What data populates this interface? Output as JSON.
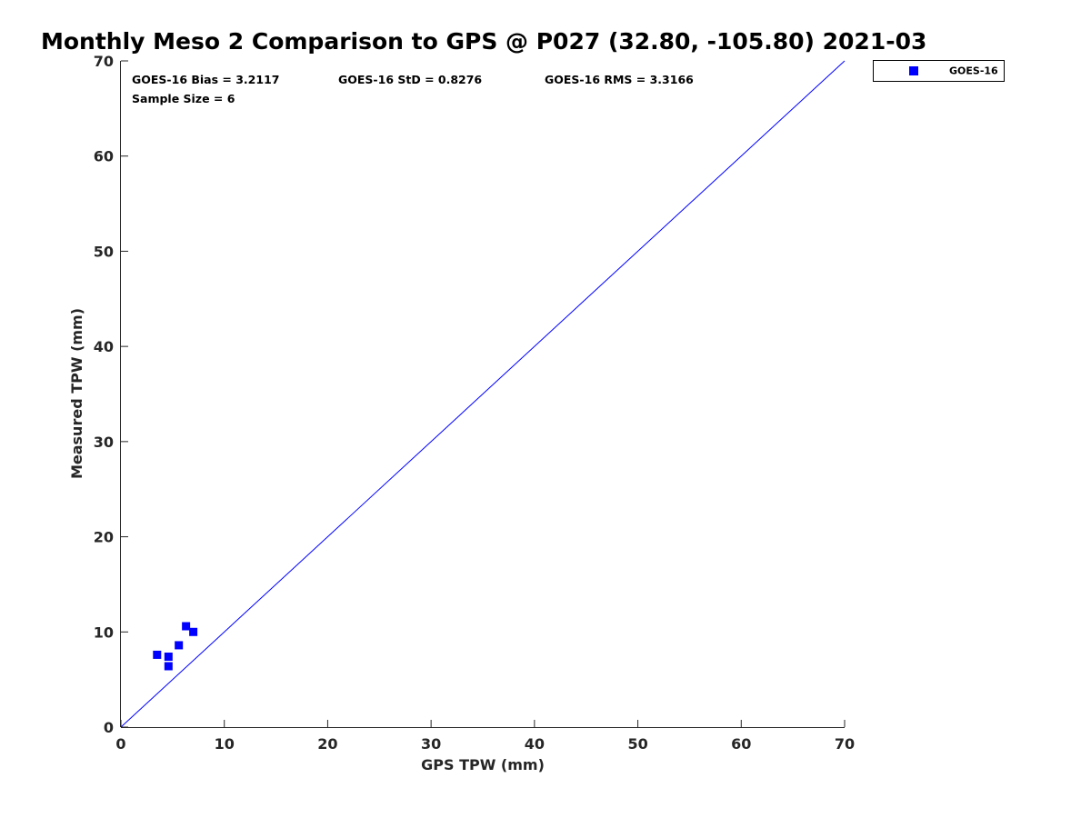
{
  "chart_data": {
    "type": "scatter",
    "title": "Monthly Meso 2 Comparison to GPS @ P027 (32.80, -105.80) 2021-03",
    "xlabel": "GPS TPW (mm)",
    "ylabel": "Measured TPW (mm)",
    "xlim": [
      0,
      70
    ],
    "ylim": [
      0,
      70
    ],
    "xticks": [
      "0",
      "10",
      "20",
      "30",
      "40",
      "50",
      "60",
      "70"
    ],
    "yticks": [
      "0",
      "10",
      "20",
      "30",
      "40",
      "50",
      "60",
      "70"
    ],
    "grid": false,
    "legend_position": "outside-top-right",
    "series": [
      {
        "name": "GOES-16",
        "color": "#0000ff",
        "marker": "square",
        "points": [
          {
            "x": 3.5,
            "y": 7.6
          },
          {
            "x": 4.6,
            "y": 7.4
          },
          {
            "x": 4.6,
            "y": 6.4
          },
          {
            "x": 5.6,
            "y": 8.6
          },
          {
            "x": 6.3,
            "y": 10.6
          },
          {
            "x": 7.0,
            "y": 10.0
          }
        ]
      }
    ],
    "reference_line": {
      "from": [
        0,
        0
      ],
      "to": [
        70,
        70
      ],
      "color": "#0000ff"
    },
    "stats": {
      "bias": "GOES-16 Bias = 3.2117",
      "std": "GOES-16 StD = 0.8276",
      "rms": "GOES-16 RMS = 3.3166",
      "sample": "Sample Size = 6"
    }
  }
}
